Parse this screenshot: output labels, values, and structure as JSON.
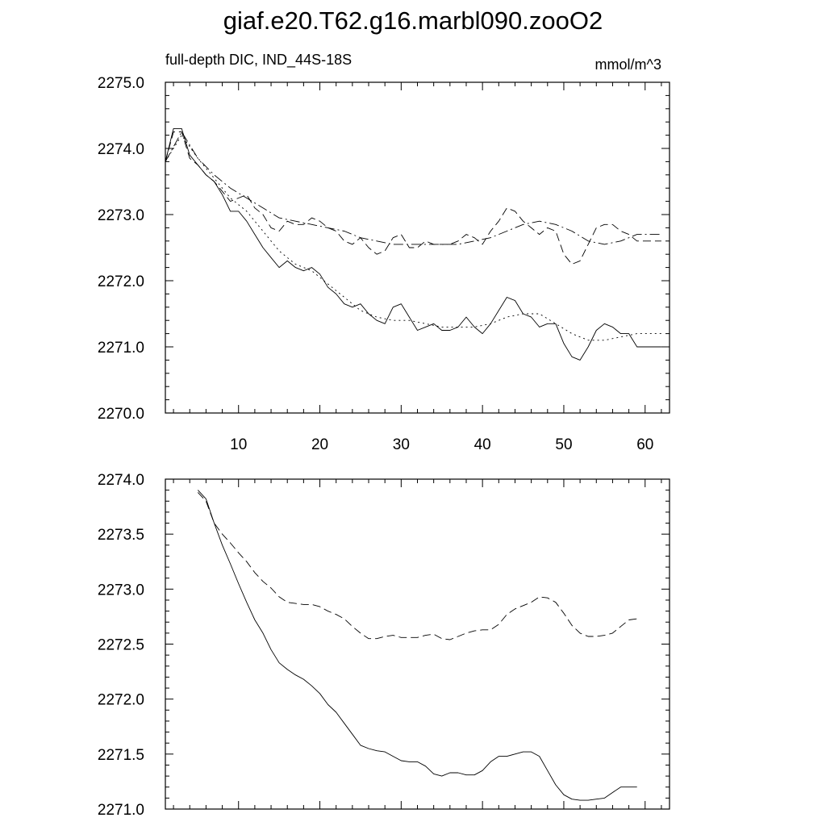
{
  "title": "giaf.e20.T62.g16.marbl090.zooO2",
  "chart_data": [
    {
      "type": "line",
      "subtitle_left": "full-depth DIC, IND_44S-18S",
      "subtitle_right": "mmol/m^3",
      "xlim": [
        1,
        63
      ],
      "ylim": [
        2270.0,
        2275.0
      ],
      "x_ticks": [
        10,
        20,
        30,
        40,
        50,
        60
      ],
      "y_ticks": [
        2270.0,
        2271.0,
        2272.0,
        2273.0,
        2274.0,
        2275.0
      ],
      "y_tick_labels": [
        "2270.0",
        "2271.0",
        "2272.0",
        "2273.0",
        "2274.0",
        "2275.0"
      ],
      "series": [
        {
          "style": "solid",
          "x": [
            1,
            2,
            3,
            4,
            5,
            6,
            7,
            8,
            9,
            10,
            11,
            12,
            13,
            14,
            15,
            16,
            17,
            18,
            19,
            20,
            21,
            22,
            23,
            24,
            25,
            26,
            27,
            28,
            29,
            30,
            31,
            32,
            33,
            34,
            35,
            36,
            37,
            38,
            39,
            40,
            41,
            42,
            43,
            44,
            45,
            46,
            47,
            48,
            49,
            50,
            51,
            52,
            53,
            54,
            55,
            56,
            57,
            58,
            59,
            60,
            61,
            62
          ],
          "y": [
            2273.8,
            2274.3,
            2274.3,
            2273.9,
            2273.75,
            2273.6,
            2273.5,
            2273.3,
            2273.05,
            2273.05,
            2272.9,
            2272.7,
            2272.5,
            2272.35,
            2272.2,
            2272.3,
            2272.2,
            2272.15,
            2272.2,
            2272.1,
            2271.9,
            2271.8,
            2271.65,
            2271.6,
            2271.65,
            2271.5,
            2271.4,
            2271.35,
            2271.6,
            2271.65,
            2271.45,
            2271.25,
            2271.3,
            2271.35,
            2271.25,
            2271.25,
            2271.3,
            2271.45,
            2271.3,
            2271.2,
            2271.35,
            2271.55,
            2271.75,
            2271.7,
            2271.5,
            2271.45,
            2271.3,
            2271.35,
            2271.35,
            2271.05,
            2270.85,
            2270.8,
            2271.0,
            2271.25,
            2271.35,
            2271.3,
            2271.2,
            2271.2,
            2271.0,
            2271.0,
            2271.0,
            2271.0
          ]
        },
        {
          "style": "dashed",
          "x": [
            1,
            2,
            3,
            4,
            5,
            6,
            7,
            8,
            9,
            10,
            11,
            12,
            13,
            14,
            15,
            16,
            17,
            18,
            19,
            20,
            21,
            22,
            23,
            24,
            25,
            26,
            27,
            28,
            29,
            30,
            31,
            32,
            33,
            34,
            35,
            36,
            37,
            38,
            39,
            40,
            41,
            42,
            43,
            44,
            45,
            46,
            47,
            48,
            49,
            50,
            51,
            52,
            53,
            54,
            55,
            56,
            57,
            58,
            59,
            60,
            61,
            62
          ],
          "y": [
            2273.8,
            2274.25,
            2274.25,
            2273.85,
            2273.75,
            2273.6,
            2273.5,
            2273.35,
            2273.2,
            2273.25,
            2273.3,
            2273.1,
            2273.0,
            2272.8,
            2272.75,
            2272.9,
            2272.85,
            2272.85,
            2272.95,
            2272.9,
            2272.8,
            2272.75,
            2272.6,
            2272.55,
            2272.65,
            2272.5,
            2272.4,
            2272.45,
            2272.65,
            2272.7,
            2272.5,
            2272.5,
            2272.6,
            2272.55,
            2272.55,
            2272.55,
            2272.6,
            2272.7,
            2272.65,
            2272.55,
            2272.75,
            2272.9,
            2273.1,
            2273.05,
            2272.9,
            2272.8,
            2272.7,
            2272.8,
            2272.75,
            2272.4,
            2272.25,
            2272.3,
            2272.55,
            2272.8,
            2272.85,
            2272.85,
            2272.75,
            2272.7,
            2272.6,
            2272.6,
            2272.6,
            2272.6
          ]
        },
        {
          "style": "dotted",
          "x": [
            1,
            3,
            5,
            7,
            9,
            11,
            13,
            15,
            17,
            19,
            21,
            23,
            25,
            27,
            29,
            31,
            33,
            35,
            37,
            39,
            41,
            43,
            45,
            47,
            49,
            51,
            53,
            55,
            57,
            59,
            61,
            62
          ],
          "y": [
            2273.8,
            2274.2,
            2273.85,
            2273.55,
            2273.25,
            2273.05,
            2272.75,
            2272.45,
            2272.25,
            2272.15,
            2271.95,
            2271.75,
            2271.55,
            2271.45,
            2271.4,
            2271.4,
            2271.35,
            2271.3,
            2271.3,
            2271.3,
            2271.35,
            2271.45,
            2271.5,
            2271.5,
            2271.35,
            2271.2,
            2271.1,
            2271.1,
            2271.15,
            2271.2,
            2271.2,
            2271.2
          ]
        },
        {
          "style": "dashdot",
          "x": [
            1,
            3,
            5,
            7,
            9,
            11,
            13,
            15,
            17,
            19,
            21,
            23,
            25,
            27,
            29,
            31,
            33,
            35,
            37,
            39,
            41,
            43,
            45,
            47,
            49,
            51,
            53,
            55,
            57,
            59,
            61,
            62
          ],
          "y": [
            2273.8,
            2274.25,
            2273.85,
            2273.6,
            2273.4,
            2273.25,
            2273.1,
            2272.95,
            2272.9,
            2272.85,
            2272.8,
            2272.75,
            2272.65,
            2272.6,
            2272.55,
            2272.55,
            2272.55,
            2272.55,
            2272.55,
            2272.6,
            2272.65,
            2272.75,
            2272.85,
            2272.9,
            2272.85,
            2272.75,
            2272.6,
            2272.55,
            2272.6,
            2272.7,
            2272.7,
            2272.7
          ]
        }
      ]
    },
    {
      "type": "line",
      "xlim": [
        1,
        63
      ],
      "ylim": [
        2271.0,
        2274.0
      ],
      "y_ticks": [
        2271.0,
        2271.5,
        2272.0,
        2272.5,
        2273.0,
        2273.5,
        2274.0
      ],
      "y_tick_labels": [
        "2271.0",
        "2271.5",
        "2272.0",
        "2272.5",
        "2273.0",
        "2273.5",
        "2274.0"
      ],
      "series": [
        {
          "style": "solid",
          "x": [
            5,
            6,
            7,
            8,
            9,
            10,
            11,
            12,
            13,
            14,
            15,
            16,
            17,
            18,
            19,
            20,
            21,
            22,
            23,
            24,
            25,
            26,
            27,
            28,
            29,
            30,
            31,
            32,
            33,
            34,
            35,
            36,
            37,
            38,
            39,
            40,
            41,
            42,
            43,
            44,
            45,
            46,
            47,
            48,
            49,
            50,
            51,
            52,
            53,
            54,
            55,
            56,
            57,
            58,
            59
          ],
          "y": [
            2273.9,
            2273.82,
            2273.6,
            2273.4,
            2273.23,
            2273.05,
            2272.88,
            2272.72,
            2272.6,
            2272.45,
            2272.33,
            2272.27,
            2272.22,
            2272.18,
            2272.12,
            2272.05,
            2271.95,
            2271.88,
            2271.78,
            2271.68,
            2271.58,
            2271.55,
            2271.53,
            2271.52,
            2271.48,
            2271.44,
            2271.43,
            2271.43,
            2271.39,
            2271.32,
            2271.3,
            2271.33,
            2271.33,
            2271.31,
            2271.31,
            2271.35,
            2271.43,
            2271.48,
            2271.48,
            2271.5,
            2271.52,
            2271.52,
            2271.48,
            2271.35,
            2271.22,
            2271.13,
            2271.09,
            2271.08,
            2271.08,
            2271.09,
            2271.1,
            2271.15,
            2271.2,
            2271.2,
            2271.2
          ]
        },
        {
          "style": "dashed",
          "x": [
            5,
            6,
            7,
            8,
            9,
            10,
            11,
            12,
            13,
            14,
            15,
            16,
            17,
            18,
            19,
            20,
            21,
            22,
            23,
            24,
            25,
            26,
            27,
            28,
            29,
            30,
            31,
            32,
            33,
            34,
            35,
            36,
            37,
            38,
            39,
            40,
            41,
            42,
            43,
            44,
            45,
            46,
            47,
            48,
            49,
            50,
            51,
            52,
            53,
            54,
            55,
            56,
            57,
            58,
            59
          ],
          "y": [
            2273.88,
            2273.8,
            2273.6,
            2273.5,
            2273.42,
            2273.33,
            2273.25,
            2273.15,
            2273.07,
            2273.01,
            2272.93,
            2272.88,
            2272.87,
            2272.86,
            2272.86,
            2272.84,
            2272.8,
            2272.77,
            2272.73,
            2272.66,
            2272.6,
            2272.55,
            2272.55,
            2272.57,
            2272.58,
            2272.56,
            2272.56,
            2272.56,
            2272.58,
            2272.59,
            2272.55,
            2272.54,
            2272.57,
            2272.6,
            2272.62,
            2272.63,
            2272.63,
            2272.68,
            2272.77,
            2272.82,
            2272.85,
            2272.88,
            2272.93,
            2272.92,
            2272.88,
            2272.78,
            2272.67,
            2272.6,
            2272.57,
            2272.57,
            2272.58,
            2272.6,
            2272.66,
            2272.72,
            2272.73
          ]
        }
      ]
    }
  ]
}
